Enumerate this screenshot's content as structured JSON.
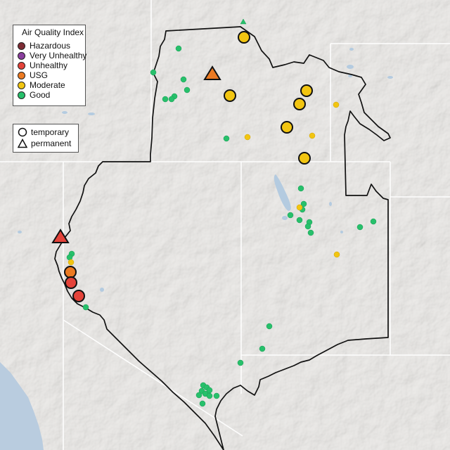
{
  "legend": {
    "title": "Air Quality Index",
    "categories": [
      {
        "label": "Hazardous",
        "color": "#7e2d35"
      },
      {
        "label": "Very Unhealthy",
        "color": "#8a3f9e"
      },
      {
        "label": "Unhealthy",
        "color": "#e4433a"
      },
      {
        "label": "USG",
        "color": "#ec7a22"
      },
      {
        "label": "Moderate",
        "color": "#f2c511"
      },
      {
        "label": "Good",
        "color": "#27c06b"
      }
    ],
    "monitor_types": [
      {
        "label": "temporary",
        "icon": "circle-icon"
      },
      {
        "label": "permanent",
        "icon": "triangle-icon"
      }
    ]
  },
  "colors": {
    "land": "#e6e4e1",
    "ocean": "#b9ccdf",
    "lakes": "#b4cbe0",
    "region_outline": "#111111",
    "state_borders": "#ffffff"
  }
}
